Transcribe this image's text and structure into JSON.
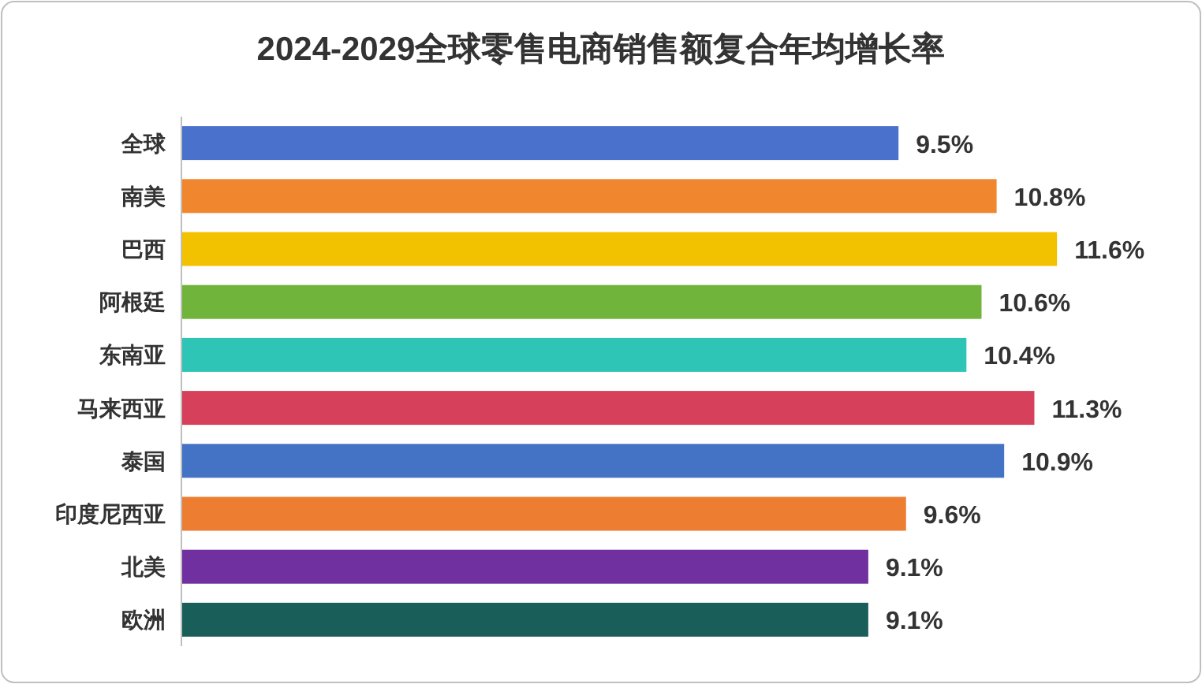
{
  "chart_data": {
    "type": "bar",
    "orientation": "horizontal",
    "title": "2024-2029全球零售电商销售额复合年均增长率",
    "categories": [
      "全球",
      "南美",
      "巴西",
      "阿根廷",
      "东南亚",
      "马来西亚",
      "泰国",
      "印度尼西亚",
      "北美",
      "欧洲"
    ],
    "values": [
      9.5,
      10.8,
      11.6,
      10.6,
      10.4,
      11.3,
      10.9,
      9.6,
      9.1,
      9.1
    ],
    "value_labels": [
      "9.5%",
      "10.8%",
      "11.6%",
      "10.6%",
      "10.4%",
      "11.3%",
      "10.9%",
      "9.6%",
      "9.1%",
      "9.1%"
    ],
    "colors": [
      "#4a72cd",
      "#f0862e",
      "#f2c200",
      "#70b43c",
      "#2ec4b6",
      "#d6405a",
      "#4472c4",
      "#ed7d31",
      "#7030a0",
      "#1a5e5a"
    ],
    "xlim": [
      0,
      13.5
    ],
    "tick_labels": "y"
  }
}
